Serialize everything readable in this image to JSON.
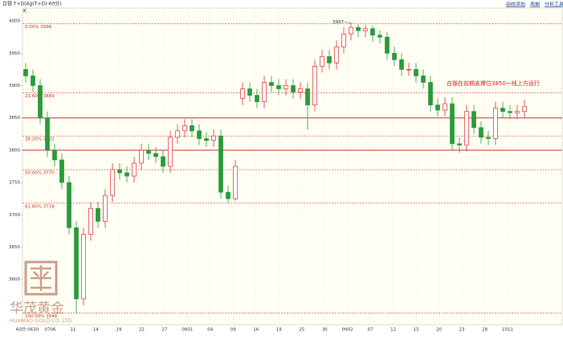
{
  "chart_data": {
    "type": "candlestick",
    "title": "白银 T+D(Ag(T+D)-60分)",
    "subtitle": "K",
    "toolbar": [
      "画线添加",
      "周期",
      "分析工具"
    ],
    "annotation": "白银在前期支撑位3850一线上方运行",
    "watermark": {
      "name": "华茂黄金",
      "english": "HUAMAO GOLD CO.,LTD"
    },
    "ylim": [
      3530,
      4020
    ],
    "yticks": [
      3600,
      3650,
      3700,
      3750,
      3800,
      3850,
      3900,
      3950,
      4000
    ],
    "categories": [
      "60分 0630",
      "0706",
      "11",
      "14",
      "19",
      "22",
      "27",
      "0801",
      "04",
      "09",
      "16",
      "19",
      "25",
      "30",
      "0902",
      "07",
      "12",
      "15",
      "20",
      "23",
      "28",
      "1011"
    ],
    "fib_levels": [
      {
        "label": "0.00% 3996",
        "value": 3996
      },
      {
        "label": "23.60% 3889",
        "value": 3889
      },
      {
        "label": "38.20% 3822",
        "value": 3822
      },
      {
        "label": "50.00% 3770",
        "value": 3770
      },
      {
        "label": "61.80% 3718",
        "value": 3718
      },
      {
        "label": "100.00% 3548",
        "value": 3548
      }
    ],
    "support_lines": [
      3850,
      3800
    ],
    "up_color": "#e0302a",
    "down_color": "#2a9a3a",
    "candles": {
      "open": [
        3925,
        3915,
        3900,
        3850,
        3800,
        3785,
        3750,
        3680,
        3570,
        3670,
        3710,
        3690,
        3730,
        3770,
        3765,
        3760,
        3780,
        3800,
        3795,
        3790,
        3775,
        3820,
        3830,
        3838,
        3830,
        3818,
        3815,
        3822,
        3735,
        3725,
        3880,
        3895,
        3885,
        3875,
        3905,
        3900,
        3895,
        3900,
        3890,
        3895,
        3870,
        3930,
        3945,
        3935,
        3960,
        3980,
        3990,
        3985,
        3988,
        3978,
        3975,
        3950,
        3940,
        3925,
        3925,
        3915,
        3905,
        3870,
        3862,
        3872,
        3810,
        3808,
        3860,
        3835,
        3820,
        3818,
        3865,
        3860,
        3858,
        3860
      ],
      "high": [
        3935,
        3925,
        3910,
        3860,
        3810,
        3795,
        3760,
        3690,
        3680,
        3720,
        3720,
        3740,
        3780,
        3780,
        3775,
        3790,
        3810,
        3810,
        3805,
        3800,
        3830,
        3840,
        3848,
        3848,
        3840,
        3828,
        3832,
        3832,
        3745,
        3785,
        3905,
        3905,
        3895,
        3915,
        3915,
        3910,
        3910,
        3910,
        3905,
        3905,
        3940,
        3955,
        3955,
        3970,
        3990,
        3997,
        3995,
        3994,
        3993,
        3986,
        3983,
        3960,
        3950,
        3935,
        3935,
        3925,
        3915,
        3880,
        3882,
        3882,
        3820,
        3870,
        3870,
        3845,
        3830,
        3875,
        3875,
        3870,
        3870,
        3878
      ],
      "low": [
        3905,
        3890,
        3840,
        3790,
        3775,
        3740,
        3670,
        3548,
        3560,
        3660,
        3680,
        3680,
        3720,
        3755,
        3750,
        3750,
        3770,
        3785,
        3780,
        3765,
        3765,
        3810,
        3820,
        3820,
        3808,
        3805,
        3805,
        3725,
        3718,
        3722,
        3870,
        3875,
        3865,
        3865,
        3890,
        3885,
        3885,
        3880,
        3880,
        3832,
        3860,
        3920,
        3925,
        3925,
        3950,
        3970,
        3975,
        3975,
        3968,
        3965,
        3940,
        3930,
        3915,
        3915,
        3905,
        3895,
        3860,
        3852,
        3852,
        3800,
        3796,
        3798,
        3825,
        3810,
        3808,
        3808,
        3850,
        3848,
        3848,
        3850
      ],
      "close": [
        3915,
        3900,
        3850,
        3800,
        3785,
        3750,
        3680,
        3570,
        3670,
        3710,
        3690,
        3730,
        3770,
        3765,
        3760,
        3780,
        3800,
        3795,
        3790,
        3775,
        3820,
        3830,
        3838,
        3830,
        3818,
        3815,
        3822,
        3735,
        3725,
        3775,
        3895,
        3885,
        3875,
        3905,
        3900,
        3895,
        3900,
        3890,
        3895,
        3870,
        3930,
        3945,
        3935,
        3960,
        3980,
        3990,
        3985,
        3988,
        3978,
        3975,
        3950,
        3940,
        3925,
        3925,
        3915,
        3905,
        3870,
        3862,
        3872,
        3810,
        3808,
        3860,
        3835,
        3820,
        3818,
        3865,
        3860,
        3858,
        3860,
        3868
      ]
    }
  }
}
